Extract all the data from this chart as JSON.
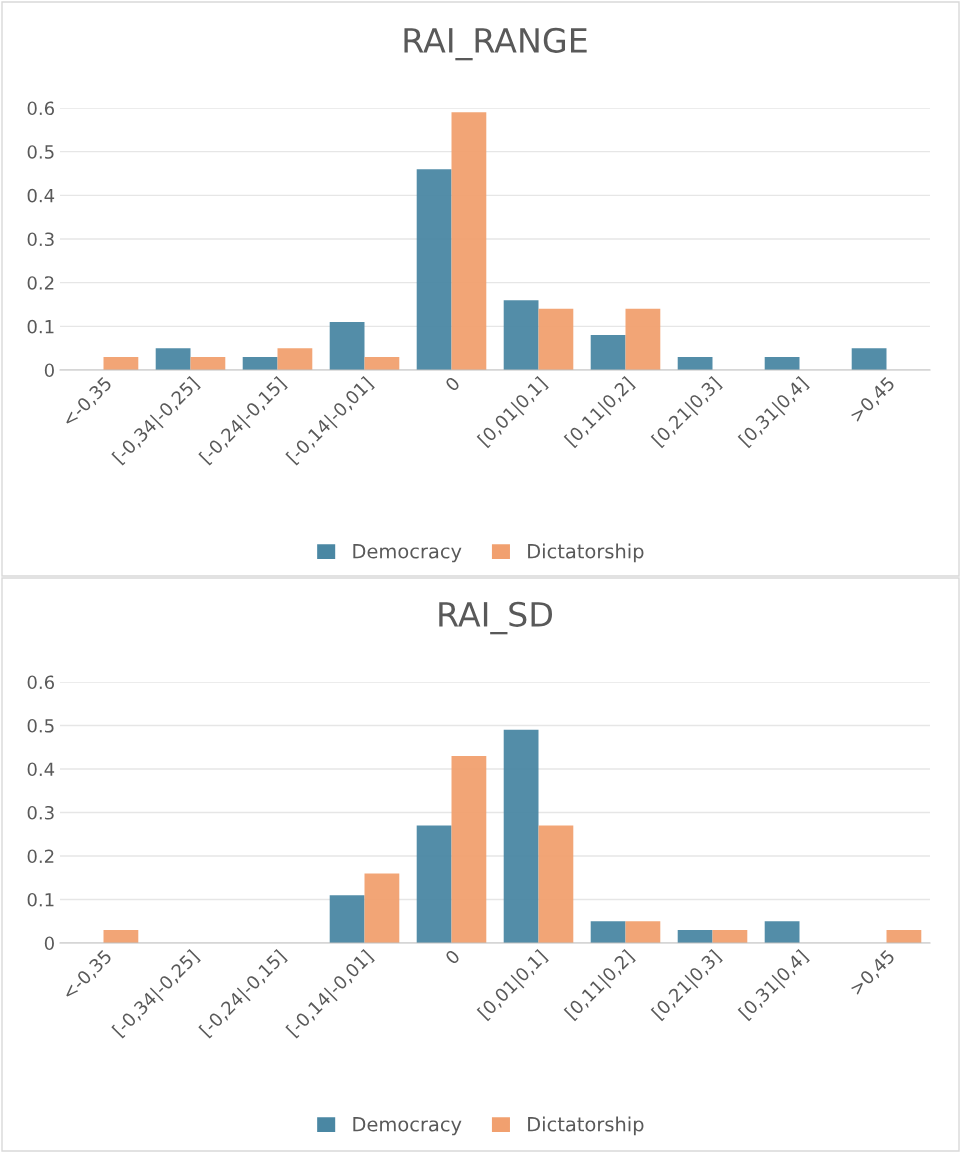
{
  "chart_data": [
    {
      "type": "bar",
      "title": "RAI_RANGE",
      "categories": [
        "<-0,35",
        "[-0,34|-0,25]",
        "[-0,24|-0,15]",
        "[-0,14|-0,01]",
        "0",
        "[0,01|0,1]",
        "[0,11|0,2]",
        "[0,21|0,3]",
        "[0,31|0,4]",
        ">0,45"
      ],
      "series": [
        {
          "name": "Democracy",
          "color": "#4a87a3",
          "values": [
            0,
            0.05,
            0.03,
            0.11,
            0.46,
            0.16,
            0.08,
            0.03,
            0.03,
            0.05
          ]
        },
        {
          "name": "Dictatorship",
          "color": "#f1a06f",
          "values": [
            0.03,
            0.03,
            0.05,
            0.03,
            0.59,
            0.14,
            0.14,
            0,
            0,
            0
          ]
        }
      ],
      "ylim": [
        0,
        0.6
      ],
      "yticks": [
        0,
        0.1,
        0.2,
        0.3,
        0.4,
        0.5,
        0.6
      ],
      "grid": "y",
      "legend": "bottom"
    },
    {
      "type": "bar",
      "title": "RAI_SD",
      "categories": [
        "<-0,35",
        "[-0,34|-0,25]",
        "[-0,24|-0,15]",
        "[-0,14|-0,01]",
        "0",
        "[0,01|0,1]",
        "[0,11|0,2]",
        "[0,21|0,3]",
        "[0,31|0,4]",
        ">0,45"
      ],
      "series": [
        {
          "name": "Democracy",
          "color": "#4a87a3",
          "values": [
            0,
            0,
            0,
            0.11,
            0.27,
            0.49,
            0.05,
            0.03,
            0.05,
            0
          ]
        },
        {
          "name": "Dictatorship",
          "color": "#f1a06f",
          "values": [
            0.03,
            0,
            0,
            0.16,
            0.43,
            0.27,
            0.05,
            0.03,
            0,
            0.03
          ]
        }
      ],
      "ylim": [
        0,
        0.6
      ],
      "yticks": [
        0,
        0.1,
        0.2,
        0.3,
        0.4,
        0.5,
        0.6
      ],
      "grid": "y",
      "legend": "bottom"
    }
  ]
}
